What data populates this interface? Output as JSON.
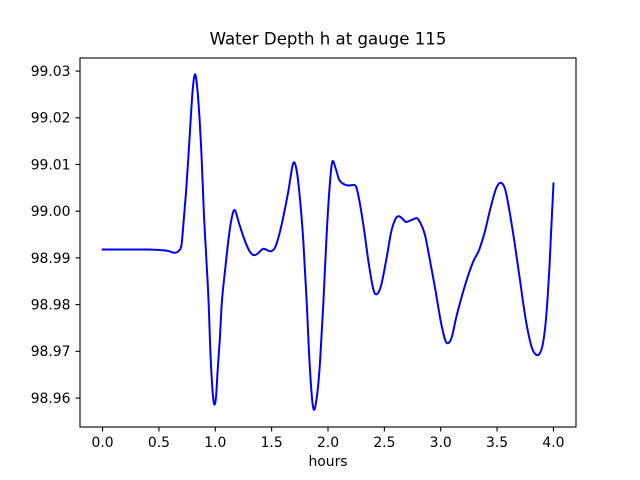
{
  "chart_data": {
    "type": "line",
    "title": "Water Depth h at gauge 115",
    "xlabel": "hours",
    "ylabel": "",
    "xlim": [
      -0.2,
      4.2
    ],
    "ylim": [
      98.9538,
      99.0328
    ],
    "grid": false,
    "legend": "none",
    "background_color": "#ffffff",
    "axis_color": "#000000",
    "line_color": "#0000ff",
    "line_width": 2,
    "xticks": [
      0.0,
      0.5,
      1.0,
      1.5,
      2.0,
      2.5,
      3.0,
      3.5,
      4.0
    ],
    "xtick_labels": [
      "0.0",
      "0.5",
      "1.0",
      "1.5",
      "2.0",
      "2.5",
      "3.0",
      "3.5",
      "4.0"
    ],
    "yticks": [
      98.96,
      98.97,
      98.98,
      98.99,
      99.0,
      99.01,
      99.02,
      99.03
    ],
    "ytick_labels": [
      "98.96",
      "98.97",
      "98.98",
      "98.99",
      "99.00",
      "99.01",
      "99.02",
      "99.03"
    ],
    "series": [
      {
        "name": "water depth h",
        "points": [
          [
            0.0,
            98.9918
          ],
          [
            0.1,
            98.9918
          ],
          [
            0.2,
            98.9918
          ],
          [
            0.3,
            98.9918
          ],
          [
            0.4,
            98.9918
          ],
          [
            0.5,
            98.9917
          ],
          [
            0.58,
            98.9915
          ],
          [
            0.64,
            98.9911
          ],
          [
            0.68,
            98.9916
          ],
          [
            0.7,
            98.9928
          ],
          [
            0.72,
            98.998
          ],
          [
            0.74,
            99.004
          ],
          [
            0.76,
            99.011
          ],
          [
            0.78,
            99.019
          ],
          [
            0.8,
            99.026
          ],
          [
            0.82,
            99.0293
          ],
          [
            0.84,
            99.0265
          ],
          [
            0.86,
            99.02
          ],
          [
            0.88,
            99.011
          ],
          [
            0.9,
            98.999
          ],
          [
            0.92,
            98.99
          ],
          [
            0.94,
            98.981
          ],
          [
            0.96,
            98.968
          ],
          [
            0.985,
            98.9593
          ],
          [
            1.005,
            98.9598
          ],
          [
            1.02,
            98.9655
          ],
          [
            1.04,
            98.9725
          ],
          [
            1.06,
            98.981
          ],
          [
            1.09,
            98.988
          ],
          [
            1.12,
            98.9945
          ],
          [
            1.15,
            98.999
          ],
          [
            1.175,
            99.0002
          ],
          [
            1.21,
            98.9975
          ],
          [
            1.25,
            98.9945
          ],
          [
            1.3,
            98.9916
          ],
          [
            1.34,
            98.9906
          ],
          [
            1.38,
            98.991
          ],
          [
            1.42,
            98.9919
          ],
          [
            1.45,
            98.9918
          ],
          [
            1.49,
            98.9914
          ],
          [
            1.53,
            98.9922
          ],
          [
            1.57,
            98.9952
          ],
          [
            1.61,
            98.9995
          ],
          [
            1.65,
            99.0045
          ],
          [
            1.69,
            99.0102
          ],
          [
            1.72,
            99.009
          ],
          [
            1.75,
            99.003
          ],
          [
            1.78,
            98.994
          ],
          [
            1.81,
            98.981
          ],
          [
            1.84,
            98.966
          ],
          [
            1.87,
            98.9578
          ],
          [
            1.9,
            98.96
          ],
          [
            1.93,
            98.968
          ],
          [
            1.96,
            98.981
          ],
          [
            1.99,
            98.996
          ],
          [
            2.02,
            99.007
          ],
          [
            2.04,
            99.0107
          ],
          [
            2.07,
            99.009
          ],
          [
            2.1,
            99.0067
          ],
          [
            2.14,
            99.0058
          ],
          [
            2.18,
            99.0055
          ],
          [
            2.22,
            99.0056
          ],
          [
            2.25,
            99.0052
          ],
          [
            2.28,
            99.002
          ],
          [
            2.32,
            98.996
          ],
          [
            2.36,
            98.989
          ],
          [
            2.4,
            98.9835
          ],
          [
            2.43,
            98.9822
          ],
          [
            2.47,
            98.984
          ],
          [
            2.52,
            98.99
          ],
          [
            2.56,
            98.9955
          ],
          [
            2.6,
            98.9984
          ],
          [
            2.63,
            98.9989
          ],
          [
            2.66,
            98.9984
          ],
          [
            2.69,
            98.9977
          ],
          [
            2.73,
            98.998
          ],
          [
            2.76,
            98.9983
          ],
          [
            2.79,
            98.9985
          ],
          [
            2.82,
            98.9975
          ],
          [
            2.86,
            98.995
          ],
          [
            2.9,
            98.99
          ],
          [
            2.95,
            98.9835
          ],
          [
            3.0,
            98.9765
          ],
          [
            3.04,
            98.9724
          ],
          [
            3.07,
            98.9718
          ],
          [
            3.1,
            98.9732
          ],
          [
            3.14,
            98.9775
          ],
          [
            3.19,
            98.982
          ],
          [
            3.24,
            98.986
          ],
          [
            3.29,
            98.9893
          ],
          [
            3.34,
            98.9917
          ],
          [
            3.39,
            98.9955
          ],
          [
            3.44,
            99.0005
          ],
          [
            3.49,
            99.0048
          ],
          [
            3.53,
            99.0061
          ],
          [
            3.57,
            99.0048
          ],
          [
            3.61,
            99.0
          ],
          [
            3.66,
            98.9925
          ],
          [
            3.71,
            98.984
          ],
          [
            3.76,
            98.976
          ],
          [
            3.81,
            98.9707
          ],
          [
            3.86,
            98.9692
          ],
          [
            3.9,
            98.971
          ],
          [
            3.93,
            98.976
          ],
          [
            3.96,
            98.986
          ],
          [
            3.98,
            98.996
          ],
          [
            4.0,
            99.006
          ]
        ]
      }
    ]
  }
}
